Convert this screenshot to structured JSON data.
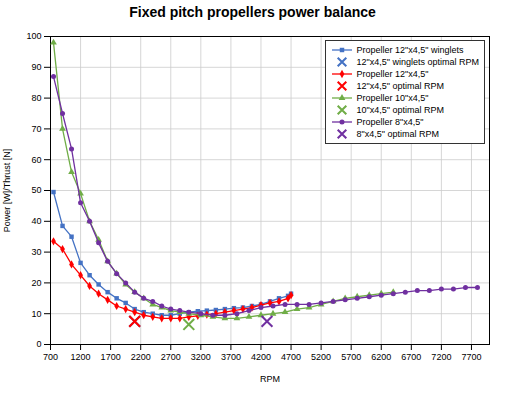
{
  "chart_data": {
    "type": "line",
    "title": "Fixed pitch propellers power balance",
    "xlabel": "RPM",
    "ylabel": "Power [W]/Thrust [N]",
    "xlim": [
      700,
      8000
    ],
    "ylim": [
      0,
      100
    ],
    "xticks": [
      700,
      1200,
      1700,
      2200,
      2700,
      3200,
      3700,
      4200,
      4700,
      5200,
      5700,
      6200,
      6700,
      7200,
      7700
    ],
    "yticks": [
      0,
      10,
      20,
      30,
      40,
      50,
      60,
      70,
      80,
      90,
      100
    ],
    "grid": true,
    "legend": "upper right",
    "series": [
      {
        "name": "Propeller 12\"x4,5\" winglets",
        "type": "line",
        "color": "#4472C4",
        "marker": "square",
        "line_style": "solid",
        "x": [
          750,
          900,
          1050,
          1200,
          1350,
          1500,
          1650,
          1800,
          1950,
          2100,
          2250,
          2400,
          2550,
          2700,
          2850,
          3000,
          3150,
          3300,
          3450,
          3600,
          3750,
          3900,
          4050,
          4200,
          4350,
          4500,
          4650,
          4700
        ],
        "values": [
          49.5,
          38.5,
          35.0,
          26.5,
          22.5,
          19.5,
          17.0,
          15.0,
          13.5,
          11.5,
          10.5,
          10.0,
          9.5,
          9.5,
          10.0,
          10.5,
          10.8,
          11.0,
          11.2,
          11.5,
          11.8,
          12.0,
          12.5,
          13.0,
          14.0,
          15.0,
          15.8,
          16.5
        ]
      },
      {
        "name": "12\"x4,5\" winglets optimal RPM",
        "type": "scatter",
        "color": "#4472C4",
        "marker": "x",
        "x": [
          2100
        ],
        "values": [
          7.5
        ]
      },
      {
        "name": "Propeller 12\"x4,5\"",
        "type": "line",
        "color": "#FF0000",
        "marker": "diamond",
        "line_style": "solid",
        "x": [
          750,
          900,
          1050,
          1200,
          1350,
          1500,
          1650,
          1800,
          1950,
          2100,
          2250,
          2400,
          2550,
          2700,
          2850,
          3000,
          3150,
          3300,
          3450,
          3600,
          3750,
          3900,
          4050,
          4200,
          4350,
          4500,
          4650,
          4700
        ],
        "values": [
          33.5,
          31.0,
          26.0,
          22.5,
          19.0,
          16.5,
          14.5,
          12.5,
          11.5,
          10.5,
          9.5,
          9.0,
          8.5,
          8.5,
          8.5,
          9.0,
          9.3,
          9.7,
          10.0,
          10.5,
          11.0,
          11.5,
          12.0,
          12.8,
          13.5,
          14.0,
          15.0,
          16.0
        ]
      },
      {
        "name": "12\"x4,5\" optimal RPM",
        "type": "scatter",
        "color": "#FF0000",
        "marker": "x",
        "x": [
          2100
        ],
        "values": [
          7.5
        ]
      },
      {
        "name": "Propeller 10\"x4,5\"",
        "type": "line",
        "color": "#70AD47",
        "marker": "triangle",
        "line_style": "solid",
        "x": [
          750,
          900,
          1050,
          1200,
          1350,
          1500,
          1650,
          1800,
          1950,
          2100,
          2250,
          2400,
          2550,
          2700,
          2850,
          3000,
          3200,
          3400,
          3600,
          3800,
          4000,
          4200,
          4400,
          4600,
          4800,
          5000,
          5200,
          5400,
          5600,
          5800,
          6000,
          6200,
          6400
        ],
        "values": [
          98.0,
          70.0,
          56.0,
          49.0,
          40.0,
          34.0,
          27.0,
          23.0,
          19.5,
          17.0,
          15.0,
          13.0,
          12.0,
          11.0,
          10.5,
          10.0,
          9.5,
          9.0,
          8.5,
          8.5,
          9.0,
          9.5,
          10.0,
          10.5,
          11.5,
          12.0,
          13.0,
          14.0,
          15.0,
          15.5,
          16.0,
          16.5,
          17.0
        ]
      },
      {
        "name": "10\"x4,5\" optimal RPM",
        "type": "scatter",
        "color": "#70AD47",
        "marker": "x",
        "x": [
          3000
        ],
        "values": [
          6.5
        ]
      },
      {
        "name": "Propeller 8\"x4,5\"",
        "type": "line",
        "color": "#7030A0",
        "marker": "circle",
        "line_style": "solid",
        "x": [
          750,
          900,
          1050,
          1200,
          1350,
          1500,
          1650,
          1800,
          1950,
          2100,
          2250,
          2400,
          2550,
          2700,
          2850,
          3000,
          3200,
          3400,
          3600,
          3800,
          4000,
          4200,
          4400,
          4600,
          4800,
          5000,
          5200,
          5400,
          5600,
          5800,
          6000,
          6200,
          6400,
          6600,
          6800,
          7000,
          7200,
          7400,
          7600,
          7800
        ],
        "values": [
          87.0,
          75.0,
          63.5,
          46.0,
          40.0,
          33.0,
          27.0,
          23.0,
          20.0,
          17.0,
          15.0,
          14.0,
          12.5,
          11.5,
          11.0,
          10.5,
          10.0,
          9.5,
          9.5,
          10.0,
          11.0,
          12.0,
          12.5,
          13.0,
          13.0,
          13.0,
          13.5,
          14.0,
          14.5,
          15.0,
          15.5,
          16.0,
          16.5,
          17.0,
          17.5,
          17.5,
          18.0,
          18.0,
          18.5,
          18.5
        ]
      },
      {
        "name": "8\"x4,5\" optimal RPM",
        "type": "scatter",
        "color": "#7030A0",
        "marker": "x",
        "x": [
          4300
        ],
        "values": [
          7.5
        ]
      }
    ]
  }
}
